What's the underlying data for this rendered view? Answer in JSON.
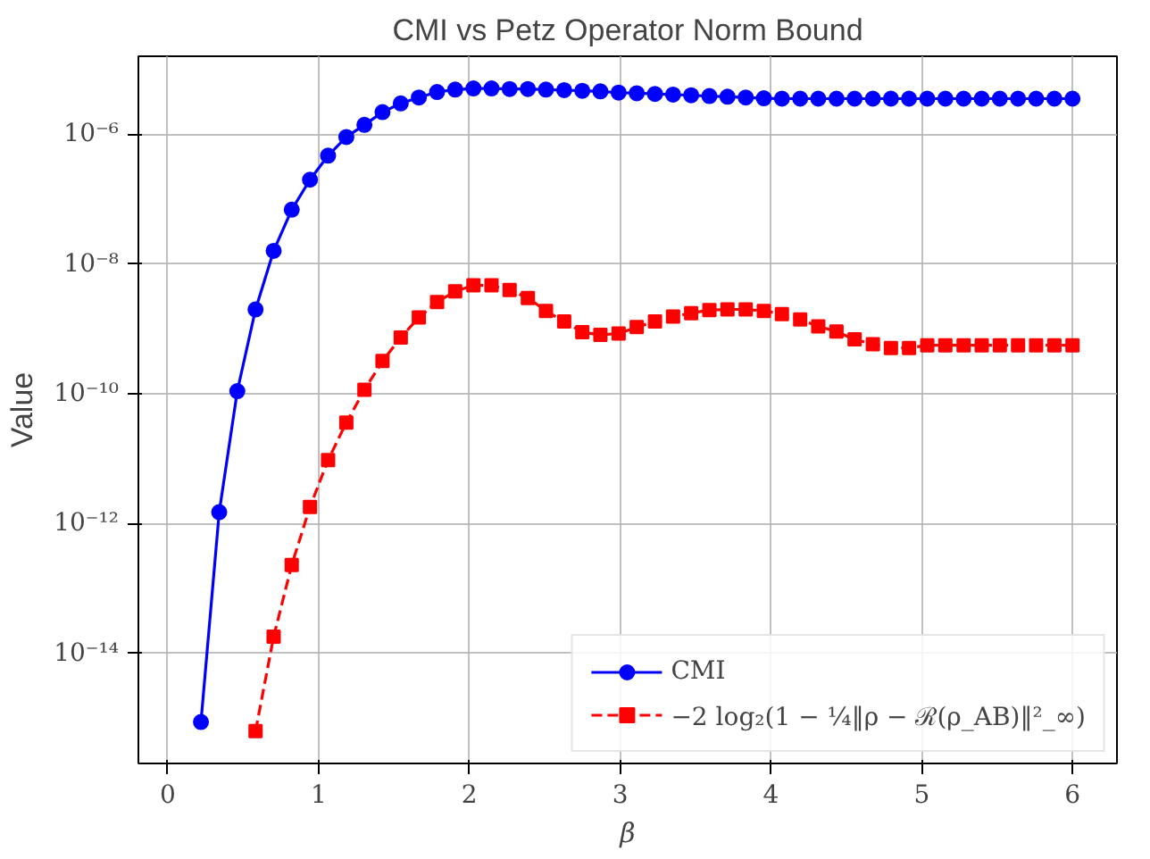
{
  "chart_data": {
    "type": "line",
    "title": "CMI vs Petz Operator Norm Bound",
    "xlabel": "β",
    "ylabel": "Value",
    "log": "y",
    "grid": true,
    "legend": "bottom right",
    "xlim": [
      -0.195,
      6.295
    ],
    "xticks": [
      0,
      1,
      2,
      3,
      4,
      5,
      6
    ],
    "ylim": [
      2e-16,
      1.6e-05
    ],
    "yticks": [
      {
        "value": 1e-14,
        "label": "10⁻¹⁴"
      },
      {
        "value": 1e-12,
        "label": "10⁻¹²"
      },
      {
        "value": 1e-10,
        "label": "10⁻¹⁰"
      },
      {
        "value": 1e-08,
        "label": "10⁻⁸"
      },
      {
        "value": 1e-06,
        "label": "10⁻⁶"
      }
    ],
    "x": [
      0.22,
      0.341,
      0.461,
      0.582,
      0.702,
      0.822,
      0.943,
      1.063,
      1.184,
      1.304,
      1.424,
      1.545,
      1.665,
      1.786,
      1.906,
      2.027,
      2.147,
      2.267,
      2.388,
      2.508,
      2.629,
      2.749,
      2.869,
      2.99,
      3.11,
      3.231,
      3.351,
      3.471,
      3.592,
      3.712,
      3.833,
      3.953,
      4.073,
      4.194,
      4.314,
      4.435,
      4.555,
      4.676,
      4.796,
      4.916,
      5.037,
      5.157,
      5.278,
      5.398,
      5.518,
      5.639,
      5.759,
      5.88,
      6.0
    ],
    "series": [
      {
        "name": "CMI",
        "color": "#0000ff",
        "marker": "circle",
        "line_style": "solid",
        "values": [
          8.7e-16,
          1.5e-12,
          1.1e-10,
          2e-09,
          1.6e-08,
          6.9e-08,
          2e-07,
          4.7e-07,
          9.1e-07,
          1.4e-06,
          2.2e-06,
          3e-06,
          3.7e-06,
          4.5e-06,
          4.9e-06,
          5.1e-06,
          5.1e-06,
          5e-06,
          5e-06,
          4.9e-06,
          4.8e-06,
          4.7e-06,
          4.6e-06,
          4.4e-06,
          4.3e-06,
          4.2e-06,
          4.1e-06,
          4e-06,
          3.9e-06,
          3.8e-06,
          3.7e-06,
          3.6e-06,
          3.55e-06,
          3.55e-06,
          3.55e-06,
          3.55e-06,
          3.55e-06,
          3.55e-06,
          3.55e-06,
          3.55e-06,
          3.55e-06,
          3.55e-06,
          3.55e-06,
          3.55e-06,
          3.55e-06,
          3.55e-06,
          3.55e-06,
          3.55e-06,
          3.55e-06
        ]
      },
      {
        "name": "−2 log₂(1 − ¼‖ρ − ℛ(ρ_AB)‖²_∞)",
        "color": "#ff0000",
        "marker": "square",
        "line_style": "dashed",
        "values": [
          null,
          null,
          null,
          6.3e-16,
          1.8e-14,
          2.3e-13,
          1.8e-12,
          9.5e-12,
          3.6e-11,
          1.15e-10,
          3.2e-10,
          7.4e-10,
          1.5e-09,
          2.6e-09,
          3.8e-09,
          4.7e-09,
          4.7e-09,
          4e-09,
          3e-09,
          1.9e-09,
          1.3e-09,
          8.9e-10,
          8.1e-10,
          8.5e-10,
          1.07e-09,
          1.3e-09,
          1.55e-09,
          1.75e-09,
          1.95e-09,
          2e-09,
          2e-09,
          1.9e-09,
          1.7e-09,
          1.4e-09,
          1.1e-09,
          9.1e-10,
          6.9e-10,
          5.8e-10,
          5.1e-10,
          5.1e-10,
          5.6e-10,
          5.6e-10,
          5.6e-10,
          5.6e-10,
          5.6e-10,
          5.6e-10,
          5.6e-10,
          5.6e-10,
          5.6e-10
        ]
      }
    ]
  }
}
